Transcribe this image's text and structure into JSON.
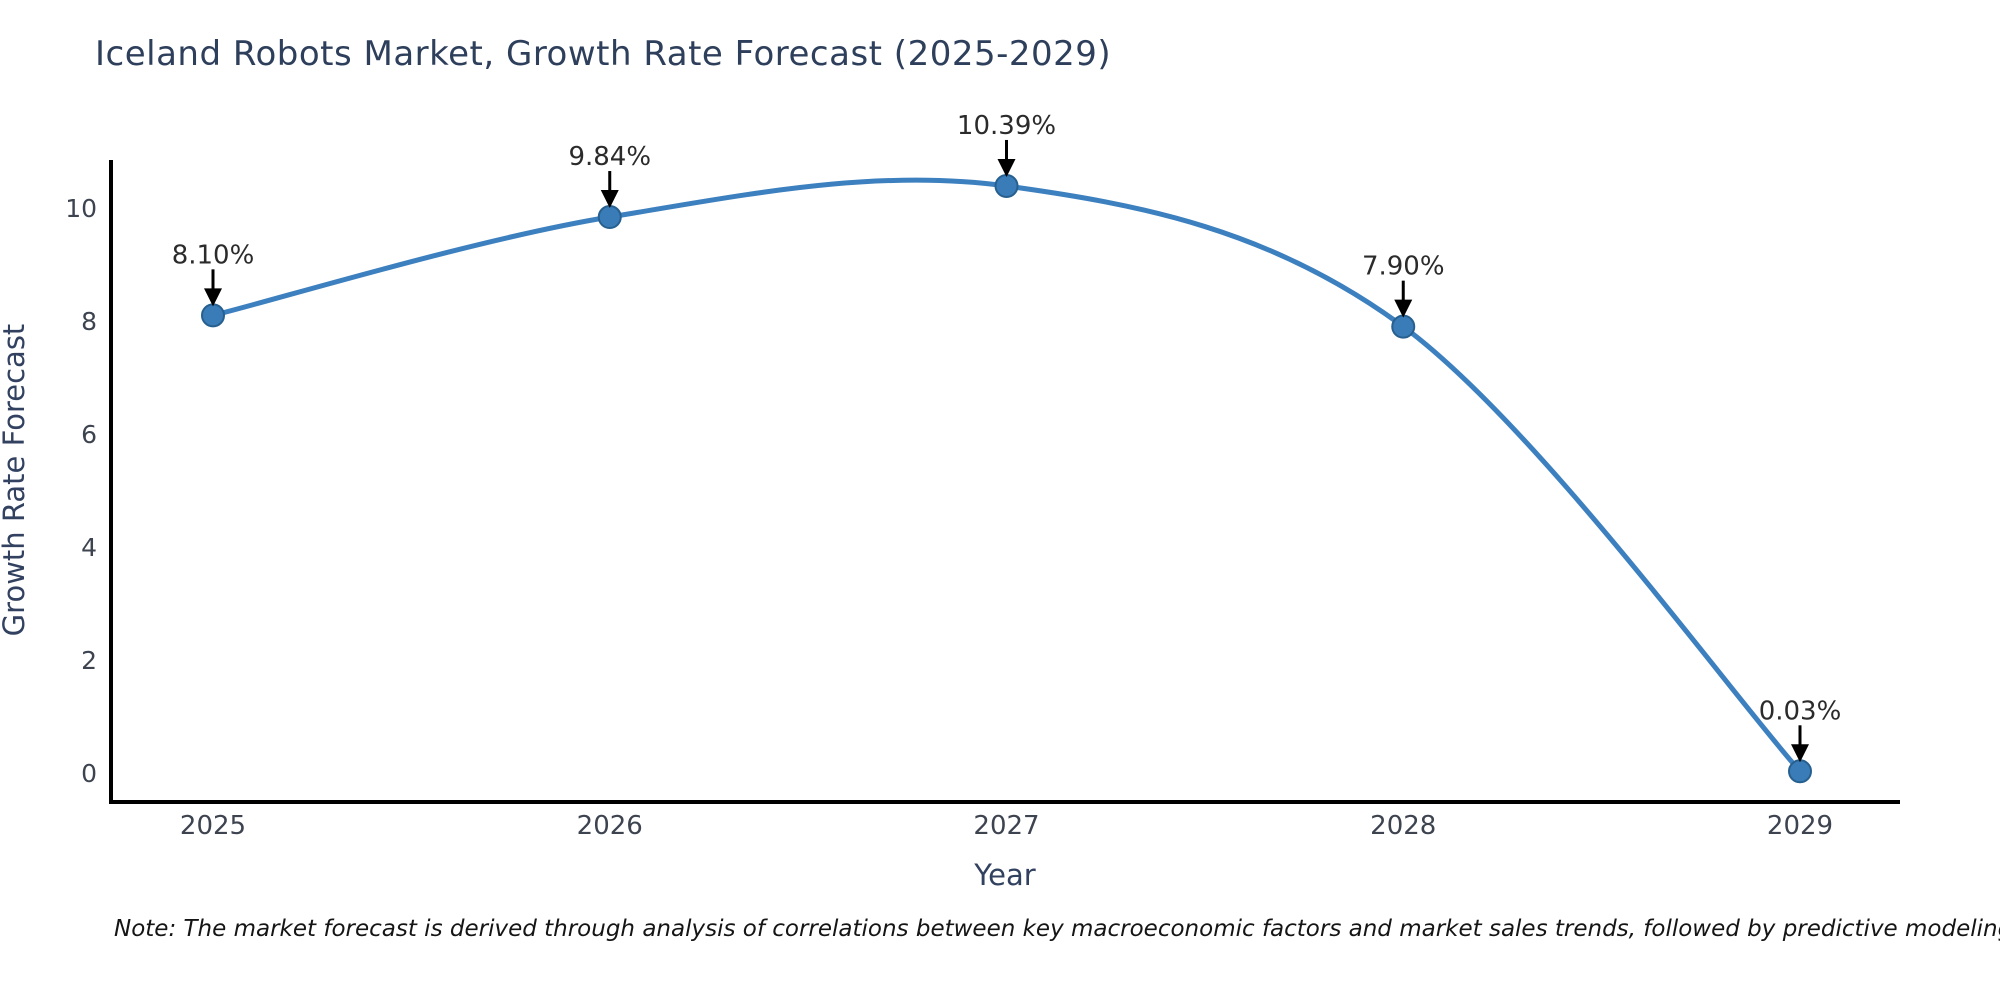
{
  "figure": {
    "note": "Note: The market forecast is derived through analysis of correlations between key macroeconomic factors and market sales trends, followed by predictive modeling to project future sales"
  },
  "chart_data": {
    "type": "line",
    "title": "Iceland Robots Market, Growth Rate Forecast (2025-2029)",
    "xlabel": "Year",
    "ylabel": "Growth Rate Forecast",
    "x": [
      2025,
      2026,
      2027,
      2028,
      2029
    ],
    "series": [
      {
        "name": "Growth Rate Forecast",
        "values": [
          8.1,
          9.84,
          10.39,
          7.9,
          0.03
        ],
        "point_labels": [
          "8.10%",
          "9.84%",
          "10.39%",
          "7.90%",
          "0.03%"
        ]
      }
    ],
    "yticks": [
      0,
      2,
      4,
      6,
      8,
      10
    ],
    "xticks": [
      2025,
      2026,
      2027,
      2028,
      2029
    ],
    "ylim": [
      -0.51,
      10.85
    ],
    "xlim": [
      2024.74,
      2029.25
    ],
    "grid": false,
    "legend": "none",
    "smooth_line": true,
    "annotation_arrows": true,
    "colors": {
      "line": "#3d80bf",
      "marker_fill": "#3a7cb8",
      "marker_edge": "#27608f",
      "axis": "#000000",
      "tick_label": "#3d4450",
      "title": "#2e3f5c",
      "axis_title": "#31415f",
      "annotation_text": "#2b2b2b",
      "arrow": "#000000"
    }
  }
}
